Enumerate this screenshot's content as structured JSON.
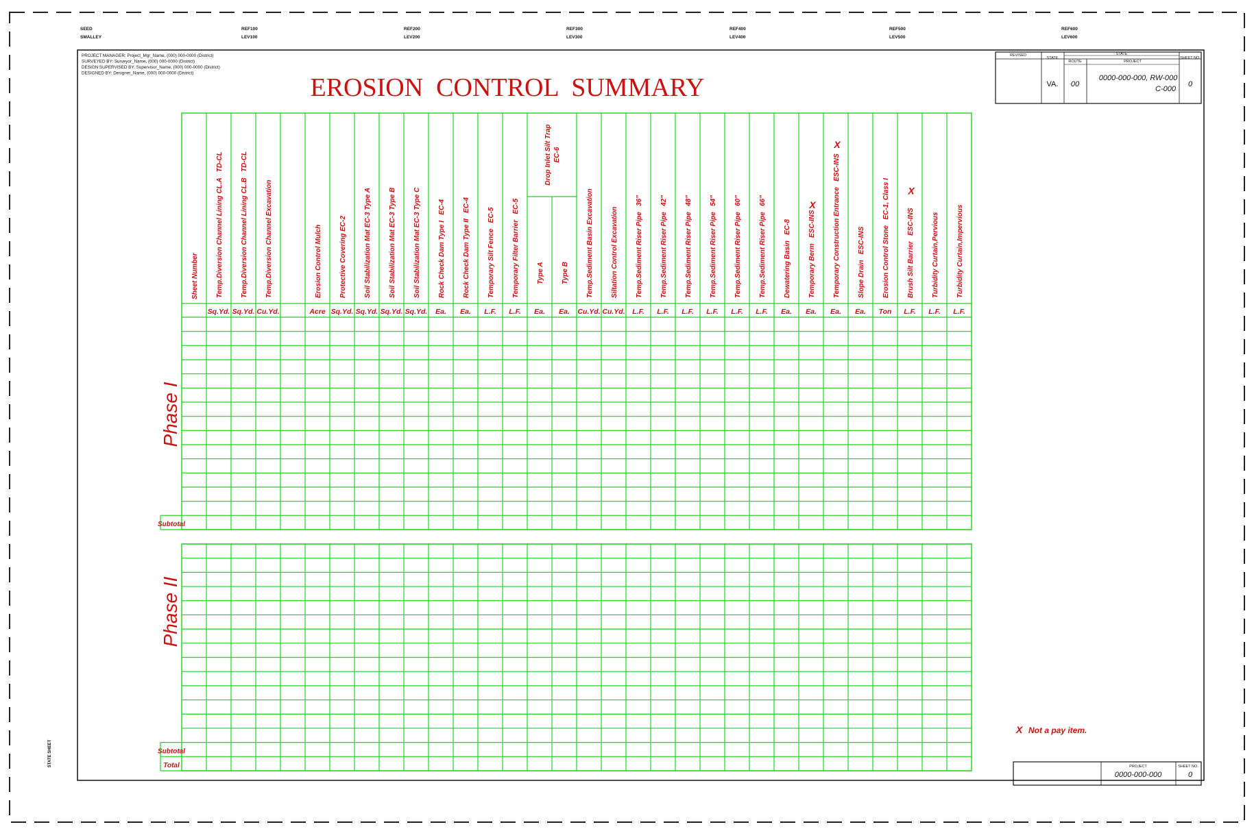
{
  "sheet_refs": [
    [
      "SEED",
      "SMALLEY"
    ],
    [
      "REF100",
      "LEV100"
    ],
    [
      "REF200",
      "LEV200"
    ],
    [
      "REF300",
      "LEV300"
    ],
    [
      "REF400",
      "LEV400"
    ],
    [
      "REF500",
      "LEV500"
    ],
    [
      "REF600",
      "LEV600"
    ]
  ],
  "project_info": [
    "PROJECT MANAGER: Project_Mgr_Name, (000) 000-0000 (District)",
    "SURVEYED BY: Surveyor_Name, (000) 000-0000 (District)",
    "DESIGN SUPERVISED BY: Supervisor_Name, (000) 000-0000 (District)",
    "DESIGNED BY: Designer_Name, (000) 000-0000 (District)"
  ],
  "title": "EROSION  CONTROL  SUMMARY",
  "title_block": {
    "revised_label": "REVISED",
    "state_label": "STATE",
    "state_header": "STATE",
    "route_label": "ROUTE",
    "project_label": "PROJECT",
    "sheet_no_label": "SHEET NO.",
    "state": "VA.",
    "route": "00",
    "project_line1": "0000-000-000, RW-000",
    "project_line2": "C-000",
    "sheet_no": "0"
  },
  "table": {
    "sheet_number_header": "Sheet Number",
    "columns": [
      {
        "name": "Temp.Diversion Channel Lining CL.A",
        "code": "TD-CL",
        "unit": "Sq.Yd."
      },
      {
        "name": "Temp.Diversion Channel Lining CL.B",
        "code": "TD-CL",
        "unit": "Sq.Yd."
      },
      {
        "name": "Temp.Diversion Channel Excavation",
        "code": "",
        "unit": "Cu.Yd."
      },
      {
        "name": "",
        "code": "",
        "unit": ""
      },
      {
        "name": "Erosion Control Mulch",
        "code": "",
        "unit": "Acre"
      },
      {
        "name": "Protective Covering EC-2",
        "code": "",
        "unit": "Sq.Yd."
      },
      {
        "name": "Soil Stabilization Mat EC-3 Type A",
        "code": "",
        "unit": "Sq.Yd."
      },
      {
        "name": "Soil Stabilization Mat EC-3 Type B",
        "code": "",
        "unit": "Sq.Yd."
      },
      {
        "name": "Soil Stabilization Mat EC-3 Type C",
        "code": "",
        "unit": "Sq.Yd."
      },
      {
        "name": "Rock Check Dam Type I",
        "code": "EC-4",
        "unit": "Ea."
      },
      {
        "name": "Rock Check Dam Type II",
        "code": "EC-4",
        "unit": "Ea."
      },
      {
        "name": "Temporary Silt Fence",
        "code": "EC-5",
        "unit": "L.F."
      },
      {
        "name": "Temporary Filter Barrier",
        "code": "EC-5",
        "unit": "L.F."
      },
      {
        "name": "Type A",
        "code": "",
        "unit": "Ea."
      },
      {
        "name": "Type B",
        "code": "",
        "unit": "Ea."
      },
      {
        "name": "Temp.Sediment Basin Excavation",
        "code": "",
        "unit": "Cu.Yd."
      },
      {
        "name": "Siltation Control Excavation",
        "code": "",
        "unit": "Cu.Yd."
      },
      {
        "name": "Temp.Sediment Riser Pipe",
        "code": "36\"",
        "unit": "L.F."
      },
      {
        "name": "Temp.Sediment Riser Pipe",
        "code": "42\"",
        "unit": "L.F."
      },
      {
        "name": "Temp.Sediment Riser Pipe",
        "code": "48\"",
        "unit": "L.F."
      },
      {
        "name": "Temp.Sediment Riser Pipe",
        "code": "54\"",
        "unit": "L.F."
      },
      {
        "name": "Temp.Sediment Riser Pipe",
        "code": "60\"",
        "unit": "L.F."
      },
      {
        "name": "Temp.Sediment Riser Pipe",
        "code": "66\"",
        "unit": "L.F."
      },
      {
        "name": "Dewatering Basin",
        "code": "EC-8",
        "unit": "Ea."
      },
      {
        "name": "Temporary Berm",
        "code": "ESC-INS",
        "unit": "Ea.",
        "mark": "X"
      },
      {
        "name": "Temporary Construction Entrance",
        "code": "ESC-INS",
        "unit": "Ea.",
        "mark": "X"
      },
      {
        "name": "Slope Drain",
        "code": "ESC-INS",
        "unit": "Ea."
      },
      {
        "name": "Erosion Control Stone",
        "code": "EC-1, Class I",
        "unit": "Ton"
      },
      {
        "name": "Brush Silt Barrier",
        "code": "ESC-INS",
        "unit": "L.F.",
        "mark": "X"
      },
      {
        "name": "Turbidity Curtain,Pervious",
        "code": "",
        "unit": "L.F."
      },
      {
        "name": "Turbidity Curtain,Impervious",
        "code": "",
        "unit": "L.F."
      }
    ],
    "group_header": {
      "line1": "Drop Inlet Silt Trap",
      "line2": "EC-6"
    },
    "phase1_label": "Phase I",
    "phase2_label": "Phase II",
    "subtotal_label": "Subtotal",
    "total_label": "Total"
  },
  "note": {
    "mark": "X",
    "text": "Not a pay item."
  },
  "bottom_block": {
    "project_label": "PROJECT",
    "sheet_no_label": "SHEET NO.",
    "project": "0000-000-000",
    "sheet_no": "0"
  },
  "side_stamp": "STATE SHEET"
}
